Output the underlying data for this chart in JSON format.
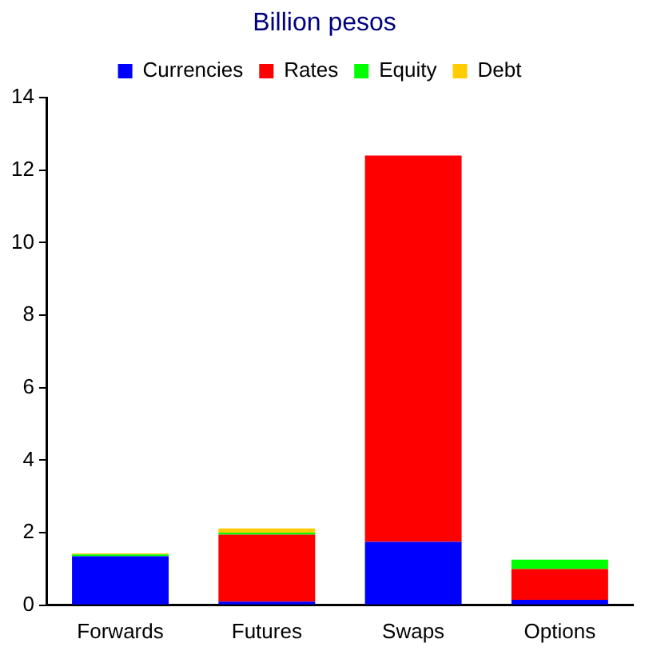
{
  "chart_data": {
    "type": "bar",
    "title": "Billion pesos",
    "categories": [
      "Forwards",
      "Futures",
      "Swaps",
      "Options"
    ],
    "stacked": true,
    "series": [
      {
        "name": "Currencies",
        "color": "#0000ff",
        "values": [
          1.35,
          0.1,
          1.75,
          0.15
        ]
      },
      {
        "name": "Rates",
        "color": "#ff0000",
        "values": [
          0,
          1.85,
          10.65,
          0.85
        ]
      },
      {
        "name": "Equity",
        "color": "#00ff00",
        "values": [
          0.05,
          0.05,
          0,
          0.26
        ]
      },
      {
        "name": "Debt",
        "color": "#ffcc00",
        "values": [
          0.03,
          0.12,
          0,
          0
        ]
      }
    ],
    "ylim": [
      0,
      14
    ],
    "yticks": [
      0,
      2,
      4,
      6,
      8,
      10,
      12,
      14
    ],
    "grid": false,
    "legend": "top"
  }
}
